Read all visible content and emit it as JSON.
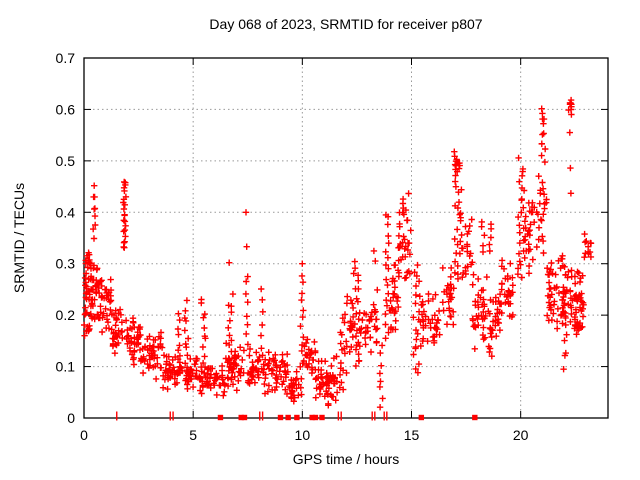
{
  "title": "Day 068 of 2023, SRMTID for receiver p807",
  "chart_data": {
    "type": "scatter",
    "title": "Day 068 of 2023, SRMTID for receiver p807",
    "xlabel": "GPS time / hours",
    "ylabel": "SRMTID / TECUs",
    "xlim": [
      0,
      24
    ],
    "ylim": [
      0,
      0.7
    ],
    "x_ticks": [
      {
        "v": 0,
        "label": "0"
      },
      {
        "v": 5,
        "label": "5"
      },
      {
        "v": 10,
        "label": "10"
      },
      {
        "v": 15,
        "label": "15"
      },
      {
        "v": 20,
        "label": "20"
      }
    ],
    "y_ticks": [
      {
        "v": 0,
        "label": "0"
      },
      {
        "v": 0.1,
        "label": "0.1"
      },
      {
        "v": 0.2,
        "label": "0.2"
      },
      {
        "v": 0.3,
        "label": "0.3"
      },
      {
        "v": 0.4,
        "label": "0.4"
      },
      {
        "v": 0.5,
        "label": "0.5"
      },
      {
        "v": 0.6,
        "label": "0.6"
      },
      {
        "v": 0.7,
        "label": "0.7"
      }
    ],
    "grid": true,
    "legend": "none",
    "marker": "plus",
    "marker_color": "#ff0000",
    "grid_color": "#999999",
    "border_color": "#000000",
    "seed": 20230680,
    "clusters": [
      {
        "t": "band",
        "x0": 0.0,
        "x1": 0.35,
        "y0": 0.13,
        "y1": 0.335,
        "n": 38
      },
      {
        "t": "band",
        "x0": 0.02,
        "x1": 0.3,
        "y0": 0.27,
        "y1": 0.335,
        "n": 8
      },
      {
        "t": "band",
        "x0": 0.35,
        "x1": 0.65,
        "y0": 0.17,
        "y1": 0.31,
        "n": 24
      },
      {
        "t": "streak",
        "x0": 0.42,
        "x1": 0.54,
        "y0": 0.355,
        "y1": 0.447,
        "n": 9
      },
      {
        "t": "band",
        "x0": 0.6,
        "x1": 1.3,
        "y0": 0.15,
        "y1": 0.3,
        "n": 42
      },
      {
        "t": "band",
        "x0": 1.3,
        "x1": 1.78,
        "y0": 0.115,
        "y1": 0.225,
        "n": 30
      },
      {
        "t": "streak",
        "x0": 1.8,
        "x1": 1.93,
        "y0": 0.33,
        "y1": 0.462,
        "n": 22
      },
      {
        "t": "band",
        "x0": 1.9,
        "x1": 2.6,
        "y0": 0.1,
        "y1": 0.205,
        "n": 40
      },
      {
        "t": "band",
        "x0": 2.6,
        "x1": 3.6,
        "y0": 0.075,
        "y1": 0.18,
        "n": 48
      },
      {
        "t": "band",
        "x0": 3.6,
        "x1": 4.45,
        "y0": 0.05,
        "y1": 0.135,
        "n": 46
      },
      {
        "t": "streak",
        "x0": 4.28,
        "x1": 4.4,
        "y0": 0.13,
        "y1": 0.2,
        "n": 6
      },
      {
        "t": "streak",
        "x0": 4.6,
        "x1": 4.78,
        "y0": 0.055,
        "y1": 0.225,
        "n": 14
      },
      {
        "t": "band",
        "x0": 4.45,
        "x1": 5.3,
        "y0": 0.055,
        "y1": 0.125,
        "n": 30
      },
      {
        "t": "streak",
        "x0": 5.35,
        "x1": 5.58,
        "y0": 0.08,
        "y1": 0.233,
        "n": 12
      },
      {
        "t": "band",
        "x0": 5.3,
        "x1": 6.45,
        "y0": 0.035,
        "y1": 0.115,
        "n": 46
      },
      {
        "t": "streak",
        "x0": 6.6,
        "x1": 6.82,
        "y0": 0.06,
        "y1": 0.235,
        "n": 16
      },
      {
        "t": "band",
        "x0": 6.45,
        "x1": 7.35,
        "y0": 0.045,
        "y1": 0.15,
        "n": 38
      },
      {
        "t": "streak",
        "x0": 7.38,
        "x1": 7.52,
        "y0": 0.14,
        "y1": 0.28,
        "n": 8
      },
      {
        "t": "band",
        "x0": 7.5,
        "x1": 8.05,
        "y0": 0.05,
        "y1": 0.15,
        "n": 30
      },
      {
        "t": "streak",
        "x0": 8.08,
        "x1": 8.2,
        "y0": 0.1,
        "y1": 0.245,
        "n": 8
      },
      {
        "t": "band",
        "x0": 8.2,
        "x1": 9.35,
        "y0": 0.04,
        "y1": 0.135,
        "n": 52
      },
      {
        "t": "band",
        "x0": 9.35,
        "x1": 9.85,
        "y0": 0.03,
        "y1": 0.095,
        "n": 24
      },
      {
        "t": "streak",
        "x0": 9.9,
        "x1": 10.08,
        "y0": 0.045,
        "y1": 0.28,
        "n": 15
      },
      {
        "t": "band",
        "x0": 10.05,
        "x1": 10.65,
        "y0": 0.07,
        "y1": 0.165,
        "n": 26
      },
      {
        "t": "band",
        "x0": 10.6,
        "x1": 11.65,
        "y0": 0.02,
        "y1": 0.125,
        "n": 60
      },
      {
        "t": "streak",
        "x0": 11.7,
        "x1": 11.97,
        "y0": 0.05,
        "y1": 0.2,
        "n": 16
      },
      {
        "t": "band",
        "x0": 12.0,
        "x1": 12.32,
        "y0": 0.08,
        "y1": 0.25,
        "n": 18
      },
      {
        "t": "streak",
        "x0": 12.32,
        "x1": 12.6,
        "y0": 0.1,
        "y1": 0.305,
        "n": 22
      },
      {
        "t": "band",
        "x0": 12.6,
        "x1": 13.45,
        "y0": 0.1,
        "y1": 0.255,
        "n": 36
      },
      {
        "t": "streak",
        "x0": 13.5,
        "x1": 13.68,
        "y0": 0.025,
        "y1": 0.14,
        "n": 8
      },
      {
        "t": "streak",
        "x0": 13.78,
        "x1": 13.97,
        "y0": 0.155,
        "y1": 0.4,
        "n": 18
      },
      {
        "t": "band",
        "x0": 13.97,
        "x1": 14.4,
        "y0": 0.155,
        "y1": 0.315,
        "n": 26
      },
      {
        "t": "band",
        "x0": 14.4,
        "x1": 14.97,
        "y0": 0.22,
        "y1": 0.455,
        "n": 38
      },
      {
        "t": "streak",
        "x0": 15.05,
        "x1": 15.38,
        "y0": 0.085,
        "y1": 0.3,
        "n": 20
      },
      {
        "t": "band",
        "x0": 15.38,
        "x1": 16.35,
        "y0": 0.12,
        "y1": 0.255,
        "n": 40
      },
      {
        "t": "band",
        "x0": 16.4,
        "x1": 16.95,
        "y0": 0.15,
        "y1": 0.315,
        "n": 26
      },
      {
        "t": "streak",
        "x0": 16.95,
        "x1": 17.3,
        "y0": 0.27,
        "y1": 0.515,
        "n": 28
      },
      {
        "t": "band",
        "x0": 17.02,
        "x1": 17.22,
        "y0": 0.48,
        "y1": 0.512,
        "n": 8
      },
      {
        "t": "band",
        "x0": 17.3,
        "x1": 17.8,
        "y0": 0.25,
        "y1": 0.432,
        "n": 20
      },
      {
        "t": "band",
        "x0": 17.8,
        "x1": 18.45,
        "y0": 0.13,
        "y1": 0.3,
        "n": 38
      },
      {
        "t": "band",
        "x0": 18.2,
        "x1": 18.65,
        "y0": 0.315,
        "y1": 0.39,
        "n": 10
      },
      {
        "t": "band",
        "x0": 18.5,
        "x1": 19.05,
        "y0": 0.1,
        "y1": 0.25,
        "n": 30
      },
      {
        "t": "band",
        "x0": 19.05,
        "x1": 19.65,
        "y0": 0.17,
        "y1": 0.34,
        "n": 30
      },
      {
        "t": "streak",
        "x0": 19.85,
        "x1": 20.18,
        "y0": 0.27,
        "y1": 0.5,
        "n": 24
      },
      {
        "t": "band",
        "x0": 20.18,
        "x1": 20.65,
        "y0": 0.25,
        "y1": 0.47,
        "n": 26
      },
      {
        "t": "band",
        "x0": 20.7,
        "x1": 21.2,
        "y0": 0.3,
        "y1": 0.52,
        "n": 22
      },
      {
        "t": "streak",
        "x0": 20.95,
        "x1": 21.15,
        "y0": 0.5,
        "y1": 0.605,
        "n": 12
      },
      {
        "t": "band",
        "x0": 21.2,
        "x1": 21.95,
        "y0": 0.15,
        "y1": 0.35,
        "n": 44
      },
      {
        "t": "streak",
        "x0": 21.95,
        "x1": 22.12,
        "y0": 0.1,
        "y1": 0.24,
        "n": 10
      },
      {
        "t": "band",
        "x0": 21.95,
        "x1": 22.45,
        "y0": 0.17,
        "y1": 0.31,
        "n": 26
      },
      {
        "t": "band",
        "x0": 22.18,
        "x1": 22.34,
        "y0": 0.585,
        "y1": 0.63,
        "n": 10
      },
      {
        "t": "band",
        "x0": 22.45,
        "x1": 22.9,
        "y0": 0.15,
        "y1": 0.3,
        "n": 30
      },
      {
        "t": "band",
        "x0": 22.45,
        "x1": 22.78,
        "y0": 0.163,
        "y1": 0.197,
        "n": 12
      },
      {
        "t": "band",
        "x0": 22.9,
        "x1": 23.3,
        "y0": 0.28,
        "y1": 0.37,
        "n": 12
      }
    ],
    "singles": [
      [
        6.65,
        0.302
      ],
      [
        7.42,
        0.4
      ],
      [
        7.45,
        0.333
      ],
      [
        10.0,
        0.3
      ],
      [
        13.28,
        0.325
      ],
      [
        13.34,
        0.305
      ],
      [
        17.25,
        0.398
      ],
      [
        22.25,
        0.555
      ],
      [
        22.28,
        0.486
      ],
      [
        22.3,
        0.437
      ]
    ],
    "zero_line_markers": {
      "squares": [
        6.25,
        7.2,
        7.35,
        9.0,
        9.35,
        9.75,
        10.45,
        10.6,
        10.9,
        15.45,
        17.9
      ],
      "ticks": [
        1.5,
        3.95,
        4.08,
        8.05,
        8.18,
        11.65,
        11.78,
        13.2,
        13.32,
        13.75,
        13.87
      ]
    }
  }
}
